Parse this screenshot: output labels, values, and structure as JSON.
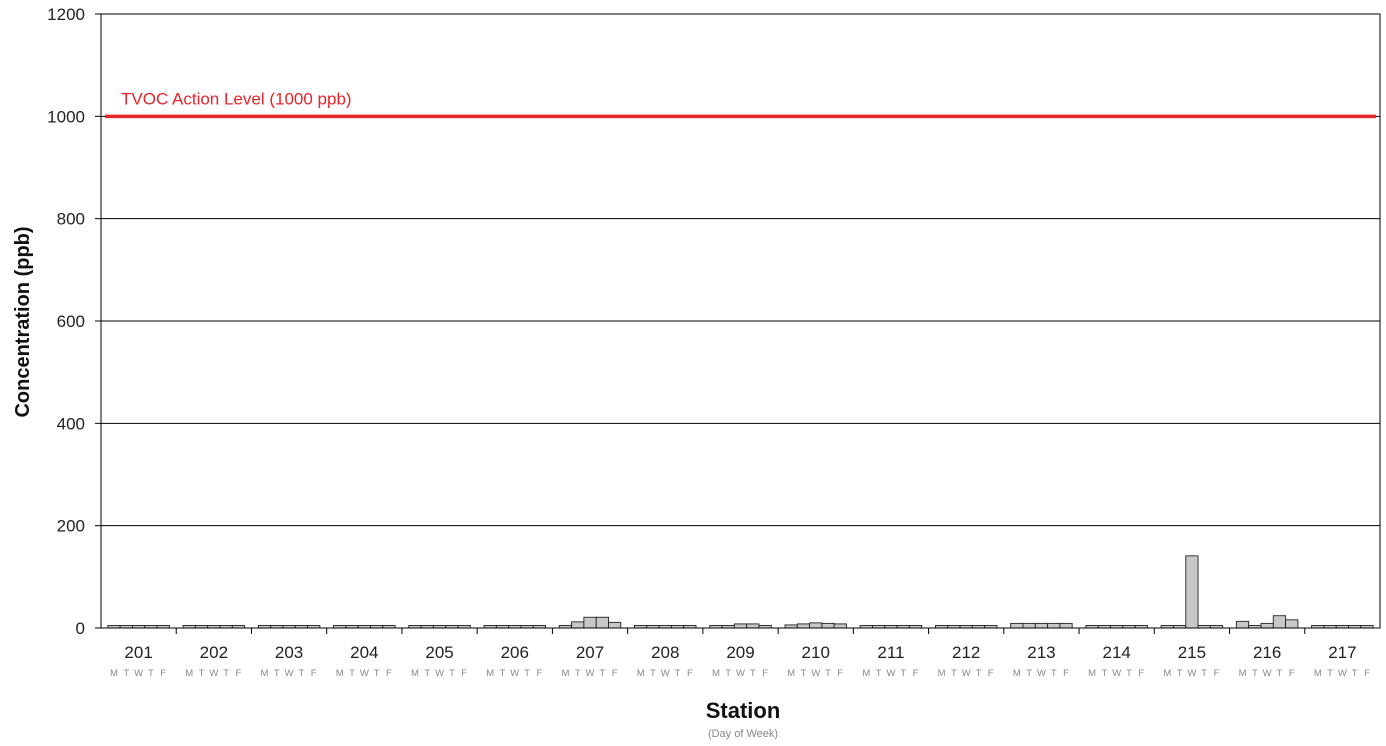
{
  "chart_data": {
    "type": "bar",
    "xlabel": "Station",
    "xlabel_sub": "(Day of Week)",
    "ylabel": "Concentration (ppb)",
    "ylim": [
      0,
      1200
    ],
    "yticks": [
      "0",
      "200",
      "400",
      "600",
      "800",
      "1000",
      "1200"
    ],
    "grid": true,
    "day_labels": [
      "M",
      "T",
      "W",
      "T",
      "F"
    ],
    "bar_color": "#c8c8c8",
    "reference_line": {
      "value": 1000,
      "label": "TVOC Action Level (1000 ppb)",
      "color": "#e8232a"
    },
    "groups": [
      {
        "station": "201",
        "values": [
          5,
          5,
          5,
          5,
          5
        ]
      },
      {
        "station": "202",
        "values": [
          5,
          5,
          5,
          5,
          5
        ]
      },
      {
        "station": "203",
        "values": [
          5,
          5,
          5,
          5,
          5
        ]
      },
      {
        "station": "204",
        "values": [
          5,
          5,
          5,
          5,
          5
        ]
      },
      {
        "station": "205",
        "values": [
          5,
          5,
          5,
          5,
          5
        ]
      },
      {
        "station": "206",
        "values": [
          5,
          5,
          5,
          5,
          5
        ]
      },
      {
        "station": "207",
        "values": [
          5,
          12,
          21,
          21,
          11
        ]
      },
      {
        "station": "208",
        "values": [
          5,
          5,
          5,
          5,
          5
        ]
      },
      {
        "station": "209",
        "values": [
          5,
          5,
          8,
          8,
          5
        ]
      },
      {
        "station": "210",
        "values": [
          6,
          8,
          10,
          9,
          8
        ]
      },
      {
        "station": "211",
        "values": [
          5,
          5,
          5,
          5,
          5
        ]
      },
      {
        "station": "212",
        "values": [
          5,
          5,
          5,
          5,
          5
        ]
      },
      {
        "station": "213",
        "values": [
          9,
          9,
          9,
          9,
          9
        ]
      },
      {
        "station": "214",
        "values": [
          5,
          5,
          5,
          5,
          5
        ]
      },
      {
        "station": "215",
        "values": [
          5,
          5,
          141,
          5,
          5
        ]
      },
      {
        "station": "216",
        "values": [
          13,
          5,
          9,
          24,
          16
        ]
      },
      {
        "station": "217",
        "values": [
          5,
          5,
          5,
          5,
          5
        ]
      }
    ]
  }
}
